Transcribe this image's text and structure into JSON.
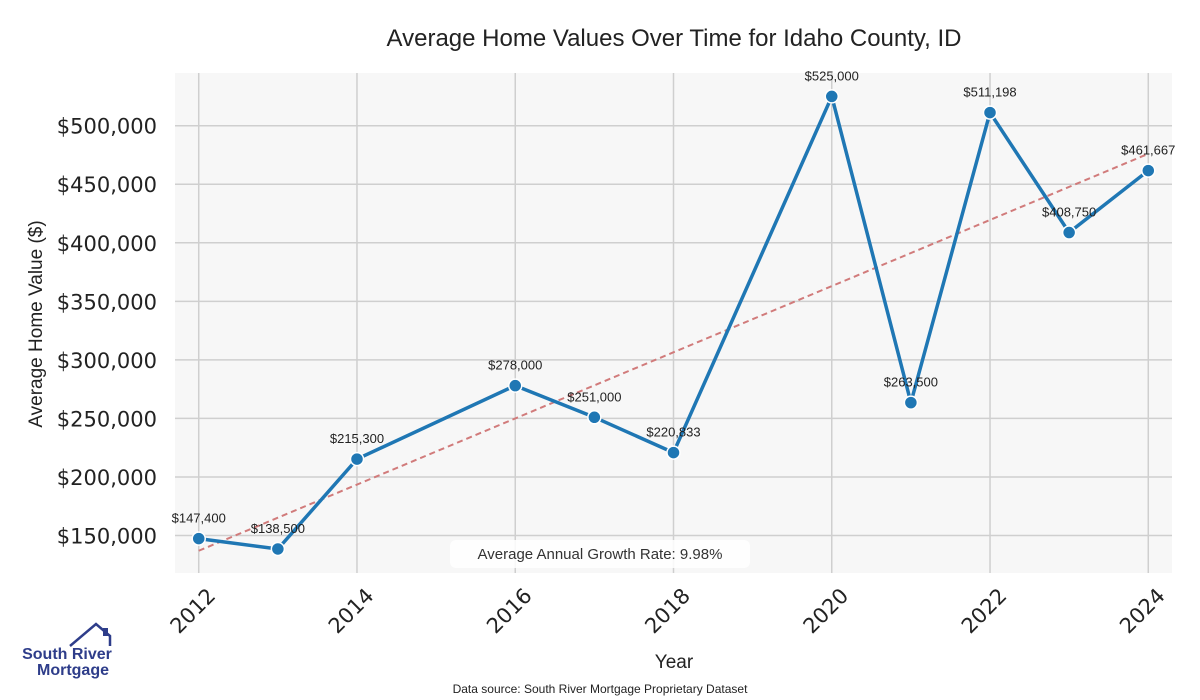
{
  "chart_data": {
    "type": "line",
    "title": "Average Home Values Over Time for Idaho County, ID",
    "xlabel": "Year",
    "ylabel": "Average Home Value ($)",
    "x": [
      2012,
      2013,
      2014,
      2016,
      2017,
      2018,
      2020,
      2021,
      2022,
      2023,
      2024
    ],
    "series": [
      {
        "values": [
          147400,
          138500,
          215300,
          278000,
          251000,
          220833,
          525000,
          263500,
          511198,
          408750,
          461667
        ],
        "labels": [
          "$147,400",
          "$138,500",
          "$215,300",
          "$278,000",
          "$251,000",
          "$220,833",
          "$525,000",
          "$263,500",
          "$511,198",
          "$408,750",
          "$461,667"
        ],
        "color": "#1f77b4"
      }
    ],
    "trend_line": {
      "start": [
        2012,
        137000
      ],
      "end": [
        2024,
        476000
      ],
      "color": "#d17b7b",
      "style": "dashed"
    },
    "annotation": "Average Annual Growth Rate: 9.98%",
    "xlim": [
      2011.7,
      2024.3
    ],
    "ylim": [
      118000,
      545000
    ],
    "x_ticks": [
      2012,
      2014,
      2016,
      2018,
      2020,
      2022,
      2024
    ],
    "y_ticks": [
      150000,
      200000,
      250000,
      300000,
      350000,
      400000,
      450000,
      500000
    ],
    "y_tick_labels": [
      "$150,000",
      "$200,000",
      "$250,000",
      "$300,000",
      "$350,000",
      "$400,000",
      "$450,000",
      "$500,000"
    ],
    "grid": true,
    "plot_background": "#f7f7f7",
    "grid_color": "#cfcfcf"
  },
  "footer": {
    "source": "Data source: South River Mortgage Proprietary Dataset"
  },
  "logo": {
    "line1": "South River",
    "line2": "Mortgage",
    "icon": "house-roof-icon",
    "color": "#2e3d8a"
  }
}
